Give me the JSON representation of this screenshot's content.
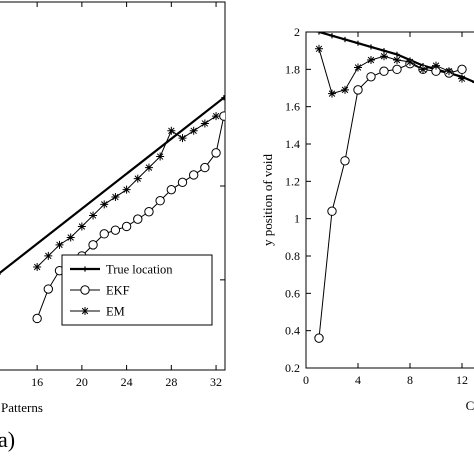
{
  "chart_data": [
    {
      "type": "line",
      "panel_label": "a)",
      "xlabel": "Patterns",
      "ylabel": "",
      "x_ticks": [
        16,
        20,
        24,
        28,
        32
      ],
      "xlim": [
        12.5,
        32.8
      ],
      "ylim": [
        0.0,
        1.0
      ],
      "grid": false,
      "legend": {
        "placement": "bottom-right",
        "entries": [
          "True location",
          "EKF",
          "EM"
        ]
      },
      "series": [
        {
          "name": "True location",
          "marker": "plus",
          "x": [
            12.5,
            32.7
          ],
          "y": [
            0.26,
            0.74
          ]
        },
        {
          "name": "EKF",
          "marker": "circle",
          "x": [
            16,
            17,
            18,
            19,
            20,
            21,
            22,
            23,
            24,
            25,
            26,
            27,
            28,
            29,
            30,
            31,
            32,
            32.7
          ],
          "y": [
            0.14,
            0.22,
            0.27,
            0.29,
            0.31,
            0.34,
            0.37,
            0.38,
            0.39,
            0.41,
            0.43,
            0.46,
            0.49,
            0.51,
            0.53,
            0.55,
            0.59,
            0.69
          ]
        },
        {
          "name": "EM",
          "marker": "star",
          "x": [
            16,
            17,
            18,
            19,
            20,
            21,
            22,
            23,
            24,
            25,
            26,
            27,
            28,
            29,
            30,
            31,
            32
          ],
          "y": [
            0.28,
            0.31,
            0.34,
            0.36,
            0.39,
            0.42,
            0.45,
            0.47,
            0.49,
            0.52,
            0.55,
            0.58,
            0.65,
            0.63,
            0.65,
            0.67,
            0.69
          ]
        }
      ]
    },
    {
      "type": "line",
      "xlabel": "C",
      "ylabel": "y position of void",
      "x_ticks": [
        0,
        4,
        8,
        12
      ],
      "x_tick_labels": [
        "0",
        "4",
        "8",
        "12"
      ],
      "y_ticks": [
        0.2,
        0.4,
        0.6,
        0.8,
        1,
        1.2,
        1.4,
        1.6,
        1.8,
        2
      ],
      "xlim": [
        0,
        14
      ],
      "ylim": [
        0.2,
        2.0
      ],
      "grid": false,
      "series": [
        {
          "name": "True location",
          "marker": "plus",
          "x": [
            1,
            2,
            3,
            4,
            5,
            6,
            7,
            8,
            9,
            10,
            11,
            12,
            13,
            14
          ],
          "y": [
            2.0,
            1.98,
            1.96,
            1.94,
            1.92,
            1.9,
            1.88,
            1.85,
            1.82,
            1.8,
            1.78,
            1.76,
            1.73,
            1.71
          ]
        },
        {
          "name": "EKF",
          "marker": "circle",
          "x": [
            1,
            2,
            3,
            4,
            5,
            6,
            7,
            8,
            9,
            10,
            11,
            12
          ],
          "y": [
            0.36,
            1.04,
            1.31,
            1.69,
            1.76,
            1.79,
            1.8,
            1.83,
            1.8,
            1.79,
            1.78,
            1.8
          ]
        },
        {
          "name": "EM",
          "marker": "star",
          "x": [
            1,
            2,
            3,
            4,
            5,
            6,
            7,
            8,
            9,
            10,
            11,
            12
          ],
          "y": [
            1.91,
            1.67,
            1.69,
            1.81,
            1.85,
            1.87,
            1.85,
            1.84,
            1.8,
            1.82,
            1.79,
            1.75
          ]
        }
      ]
    }
  ]
}
